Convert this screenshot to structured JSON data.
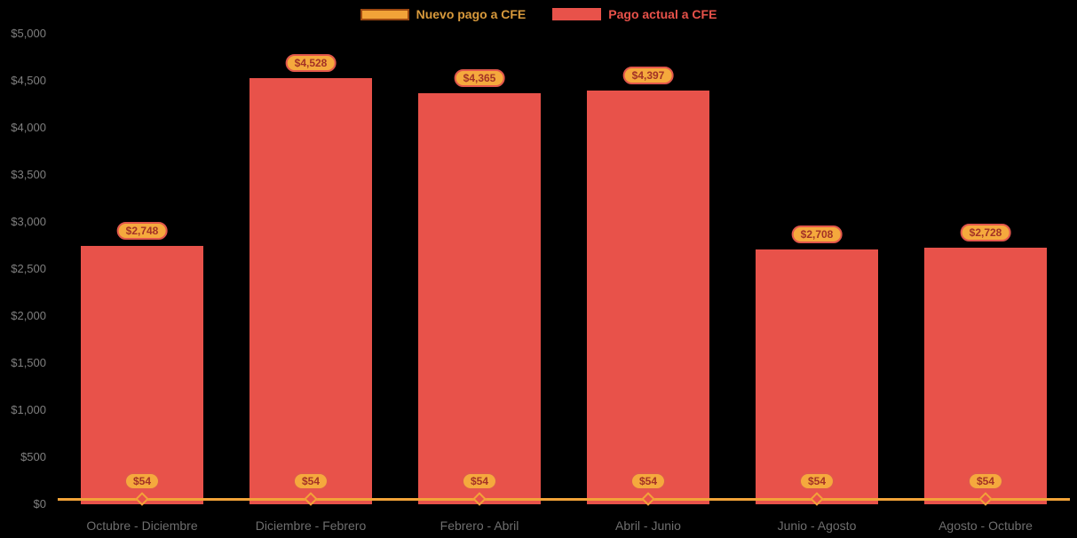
{
  "chart_data": {
    "type": "bar",
    "title": "",
    "categories": [
      "Octubre - Diciembre",
      "Diciembre - Febrero",
      "Febrero - Abril",
      "Abril - Junio",
      "Junio - Agosto",
      "Agosto - Octubre"
    ],
    "series": [
      {
        "name": "Nuevo pago a CFE",
        "type": "line",
        "color": "#F2A338",
        "values": [
          54,
          54,
          54,
          54,
          54,
          54
        ],
        "labels": [
          "$54",
          "$54",
          "$54",
          "$54",
          "$54",
          "$54"
        ]
      },
      {
        "name": "Pago actual a CFE",
        "type": "bar",
        "color": "#E8524A",
        "values": [
          2748,
          4528,
          4365,
          4397,
          2708,
          2728
        ],
        "labels": [
          "$2,748",
          "$4,528",
          "$4,365",
          "$4,397",
          "$2,708",
          "$2,728"
        ]
      }
    ],
    "xlabel": "",
    "ylabel": "",
    "ylim": [
      0,
      5000
    ],
    "ytick_step": 500,
    "ytick_labels": [
      "$0",
      "$500",
      "$1,000",
      "$1,500",
      "$2,000",
      "$2,500",
      "$3,000",
      "$3,500",
      "$4,000",
      "$4,500",
      "$5,000"
    ],
    "legend_position": "top-center",
    "grid": false,
    "background": "#000000"
  },
  "colors": {
    "bar": "#E8524A",
    "line": "#F2A338",
    "pill_background": "#F5A93D",
    "pill_border": "#E2574B",
    "pill_text": "#A33226",
    "axis_text": "#7F7F7F"
  }
}
